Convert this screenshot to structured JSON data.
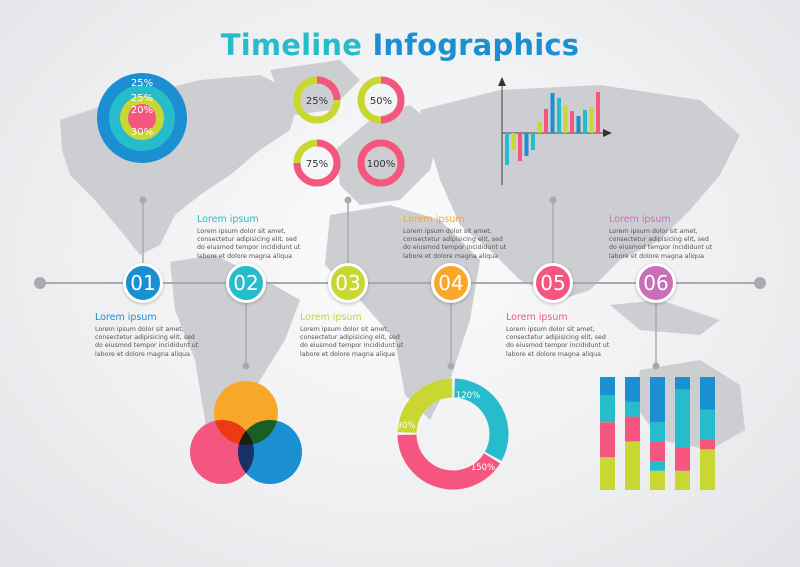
{
  "title": {
    "part1": "Timeline",
    "part2": "Infographics"
  },
  "colors": {
    "blue": "#1a8fd1",
    "teal": "#27bccb",
    "lime": "#c8d732",
    "orange": "#f9a72a",
    "pink": "#f4567f",
    "purple": "#c96fb9",
    "map": "#cdced1",
    "line": "#a9aaad"
  },
  "timeline": [
    {
      "number": "01",
      "color": "#1a8fd1",
      "heading": "Lorem ipsum",
      "lines": [
        "Lorem ipsum dolor sit amet,",
        "consectetur adipisicing elit, sed",
        "do eiusmod tempor incididunt ut",
        "labore et dolore magna aliqua"
      ]
    },
    {
      "number": "02",
      "color": "#27bccb",
      "heading": "Lorem ipsum",
      "lines": [
        "Lorem ipsum dolor sit amet,",
        "consectetur adipisicing elit, sed",
        "do eiusmod tempor incididunt ut",
        "labore et dolore magna aliqua"
      ]
    },
    {
      "number": "03",
      "color": "#c8d732",
      "heading": "Lorem ipsum",
      "lines": [
        "Lorem ipsum dolor sit amet,",
        "consectetur adipisicing elit, sed",
        "do eiusmod tempor incididunt ut",
        "labore et dolore magna aliqua"
      ]
    },
    {
      "number": "04",
      "color": "#f9a72a",
      "heading": "Lorem ipsum",
      "lines": [
        "Lorem ipsum dolor sit amet,",
        "consectetur adipisicing elit, sed",
        "do eiusmod tempor incididunt ut",
        "labore et dolore magna aliqua"
      ]
    },
    {
      "number": "05",
      "color": "#f4567f",
      "heading": "Lorem ipsum",
      "lines": [
        "Lorem ipsum dolor sit amet,",
        "consectetur adipisicing elit, sed",
        "do eiusmod tempor incididunt ut",
        "labore et dolore magna aliqua"
      ]
    },
    {
      "number": "06",
      "color": "#c96fb9",
      "heading": "Lorem ipsum",
      "lines": [
        "Lorem ipsum dolor sit amet,",
        "consectetur adipisicing elit, sed",
        "do eiusmod tempor incididunt ut",
        "labore et dolore magna aliqua"
      ]
    }
  ],
  "chart_data": [
    {
      "type": "concentric",
      "rings": [
        {
          "label": "25%",
          "color": "#1a8fd1"
        },
        {
          "label": "25%",
          "color": "#27bccb"
        },
        {
          "label": "20%",
          "color": "#c8d732"
        },
        {
          "label": "30%",
          "color": "#f4567f"
        }
      ]
    },
    {
      "type": "pie",
      "donuts": [
        {
          "label": "25%",
          "value": 25
        },
        {
          "label": "50%",
          "value": 50
        },
        {
          "label": "75%",
          "value": 75
        },
        {
          "label": "100%",
          "value": 100
        }
      ]
    },
    {
      "type": "bar",
      "values": [
        -32,
        -17,
        -28,
        -23,
        -17,
        11,
        24,
        40,
        35,
        28,
        22,
        17,
        23,
        26,
        41
      ],
      "colors": [
        "#27bccb",
        "#c8d732",
        "#f4567f",
        "#1a8fd1",
        "#27bccb",
        "#c8d732",
        "#f4567f",
        "#1a8fd1",
        "#27bccb",
        "#c8d732",
        "#f4567f",
        "#1a8fd1",
        "#27bccb",
        "#c8d732",
        "#f4567f"
      ]
    },
    {
      "type": "venn",
      "sets": [
        {
          "color": "#f9a72a"
        },
        {
          "color": "#f4567f"
        },
        {
          "color": "#1a8fd1"
        }
      ]
    },
    {
      "type": "pie",
      "donut": [
        {
          "label": "120%",
          "value": 120,
          "color": "#27bccb"
        },
        {
          "label": "150%",
          "value": 150,
          "color": "#f4567f"
        },
        {
          "label": "90%",
          "value": 90,
          "color": "#c8d732"
        }
      ]
    },
    {
      "type": "bar",
      "stacked": true,
      "unit": "percent",
      "columns": [
        [
          {
            "color": "#c8d732",
            "value": 29
          },
          {
            "color": "#f4567f",
            "value": 31
          },
          {
            "color": "#27bccb",
            "value": 24
          },
          {
            "color": "#1a8fd1",
            "value": 16
          }
        ],
        [
          {
            "color": "#c8d732",
            "value": 43
          },
          {
            "color": "#f4567f",
            "value": 22
          },
          {
            "color": "#27bccb",
            "value": 13
          },
          {
            "color": "#1a8fd1",
            "value": 22
          }
        ],
        [
          {
            "color": "#c8d732",
            "value": 17
          },
          {
            "color": "#27bccb",
            "value": 8
          },
          {
            "color": "#f4567f",
            "value": 18
          },
          {
            "color": "#27bccb",
            "value": 17
          },
          {
            "color": "#1a8fd1",
            "value": 40
          }
        ],
        [
          {
            "color": "#c8d732",
            "value": 17
          },
          {
            "color": "#f4567f",
            "value": 21
          },
          {
            "color": "#27bccb",
            "value": 51
          },
          {
            "color": "#1a8fd1",
            "value": 11
          }
        ],
        [
          {
            "color": "#c8d732",
            "value": 36
          },
          {
            "color": "#f4567f",
            "value": 9
          },
          {
            "color": "#27bccb",
            "value": 26
          },
          {
            "color": "#1a8fd1",
            "value": 29
          }
        ]
      ]
    }
  ]
}
